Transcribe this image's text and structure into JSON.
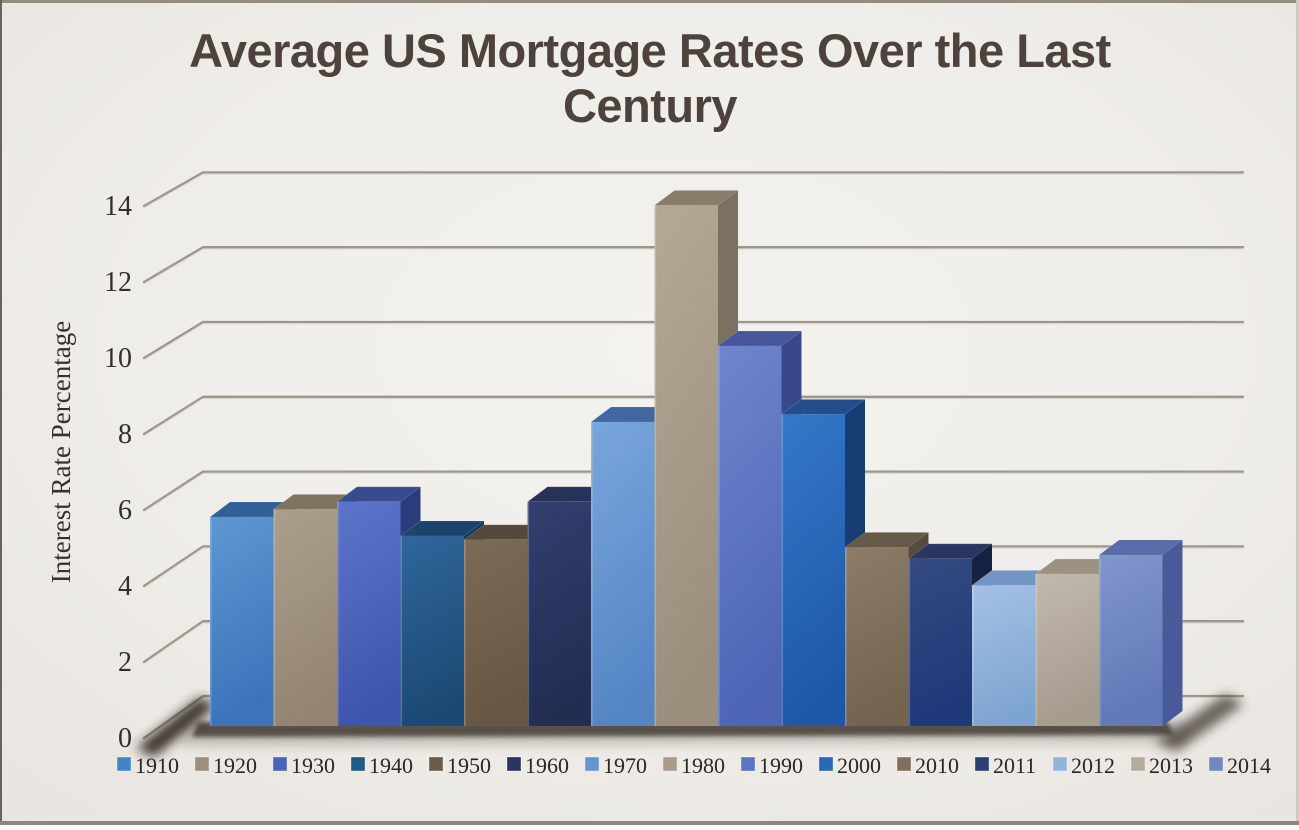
{
  "frame": {
    "background": "#f0edea",
    "border_top_color": "#948c81",
    "border_left_color": "#69635d",
    "border_bottom_color": "#8e867d",
    "border_right_color": "#cfcac4",
    "outer_bottom_strip": "#ffffff"
  },
  "title": {
    "line1": "Average US Mortgage Rates Over the Last",
    "line2": "Century",
    "color": "#4e433c"
  },
  "y_axis": {
    "label": "Interest Rate Percentage",
    "tick_values": [
      0,
      2,
      4,
      6,
      8,
      10,
      12,
      14
    ],
    "text_color": "#33302b",
    "gridline_color": "#9e968b",
    "gridline_highlight": "#d8d3cb"
  },
  "legend": {
    "position": "bottom",
    "text_color": "#2b2723"
  },
  "chart_data": {
    "type": "bar",
    "style": "3d-column",
    "title": "Average US Mortgage Rates Over the Last Century",
    "xlabel": "",
    "ylabel": "Interest Rate Percentage",
    "ylim": [
      0,
      14
    ],
    "y_tick_step": 2,
    "grid": true,
    "legend_position": "bottom",
    "categories": [
      "1910",
      "1920",
      "1930",
      "1940",
      "1950",
      "1960",
      "1970",
      "1980",
      "1990",
      "2000",
      "2010",
      "2011",
      "2012",
      "2013",
      "2014"
    ],
    "values": [
      5.5,
      5.7,
      5.9,
      5.0,
      4.9,
      5.9,
      8.0,
      13.7,
      10.0,
      8.2,
      4.7,
      4.4,
      3.7,
      4.0,
      4.5
    ],
    "series_colors": [
      {
        "front_top": "#5d97d3",
        "front_bottom": "#3b74b9",
        "side": "#2a5286",
        "top": "#325f99",
        "legend": "#4384c5"
      },
      {
        "front_top": "#ac9e8d",
        "front_bottom": "#948573",
        "side": "#6f6350",
        "top": "#80735e",
        "legend": "#9c8f7d"
      },
      {
        "front_top": "#5c75cb",
        "front_bottom": "#3f55ad",
        "side": "#2b3c7d",
        "top": "#394b8f",
        "legend": "#4a63bb"
      },
      {
        "front_top": "#2f669b",
        "front_bottom": "#1b4973",
        "side": "#133a5b",
        "top": "#1c456d",
        "legend": "#215a86"
      },
      {
        "front_top": "#7b6b56",
        "front_bottom": "#665743",
        "side": "#4a4033",
        "top": "#55493b",
        "legend": "#6b5c49"
      },
      {
        "front_top": "#333f6e",
        "front_bottom": "#222d52",
        "side": "#171e3b",
        "top": "#26325a",
        "legend": "#2a3560"
      },
      {
        "front_top": "#79a6db",
        "front_bottom": "#5486c6",
        "side": "#3a5c92",
        "top": "#40679e",
        "legend": "#6495d0"
      },
      {
        "front_top": "#b5a896",
        "front_bottom": "#9c8e7c",
        "side": "#7c7061",
        "top": "#897c6b",
        "legend": "#a89b89"
      },
      {
        "front_top": "#6f85ce",
        "front_bottom": "#4e65b5",
        "side": "#384889",
        "top": "#45569d",
        "legend": "#5d74c1"
      },
      {
        "front_top": "#3478c8",
        "front_bottom": "#1f57a7",
        "side": "#163e72",
        "top": "#224e8d",
        "legend": "#2968b8"
      },
      {
        "front_top": "#8d7d67",
        "front_bottom": "#73634f",
        "side": "#564b3c",
        "top": "#655948",
        "legend": "#80705c"
      },
      {
        "front_top": "#354a81",
        "front_bottom": "#20387a",
        "side": "#172141",
        "top": "#293661",
        "legend": "#2b3f74"
      },
      {
        "front_top": "#a4c1e4",
        "front_bottom": "#7ea5d1",
        "side": "#6088b8",
        "top": "#7296c3",
        "legend": "#91b3dc"
      },
      {
        "front_top": "#c2b9ad",
        "front_bottom": "#a59c8e",
        "side": "#898073",
        "top": "#9b9283",
        "legend": "#b4ab9e"
      },
      {
        "front_top": "#8196cc",
        "front_bottom": "#6278b7",
        "side": "#495a9a",
        "top": "#596ba8",
        "legend": "#7187c2"
      }
    ]
  }
}
